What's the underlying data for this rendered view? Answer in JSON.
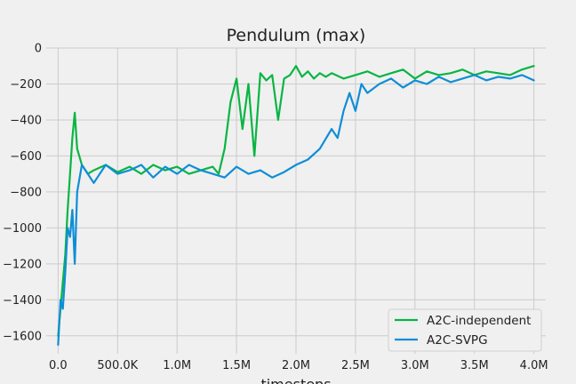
{
  "chart_data": {
    "type": "line",
    "title": "Pendulum (max)",
    "xlabel": "timesteps",
    "ylabel": "",
    "xlim": [
      -100000,
      4100000
    ],
    "ylim": [
      -1700,
      0
    ],
    "x_ticks": [
      0,
      500000,
      1000000,
      1500000,
      2000000,
      2500000,
      3000000,
      3500000,
      4000000
    ],
    "x_tick_labels": [
      "0.0",
      "500.0K",
      "1.0M",
      "1.5M",
      "2.0M",
      "2.5M",
      "3.0M",
      "3.5M",
      "4.0M"
    ],
    "y_ticks": [
      0,
      -200,
      -400,
      -600,
      -800,
      -1000,
      -1200,
      -1400,
      -1600
    ],
    "y_tick_labels": [
      "0",
      "−200",
      "−400",
      "−600",
      "−800",
      "−1000",
      "−1200",
      "−1400",
      "−1600"
    ],
    "grid": true,
    "legend_position": "bottom-right",
    "series": [
      {
        "name": "A2C-independent",
        "color": "#08b543",
        "x": [
          0,
          20000,
          40000,
          60000,
          80000,
          100000,
          120000,
          140000,
          160000,
          200000,
          250000,
          300000,
          400000,
          500000,
          600000,
          700000,
          800000,
          900000,
          1000000,
          1100000,
          1200000,
          1300000,
          1350000,
          1400000,
          1450000,
          1500000,
          1550000,
          1600000,
          1650000,
          1700000,
          1750000,
          1800000,
          1850000,
          1900000,
          1950000,
          2000000,
          2050000,
          2100000,
          2150000,
          2200000,
          2250000,
          2300000,
          2400000,
          2500000,
          2600000,
          2700000,
          2800000,
          2900000,
          3000000,
          3100000,
          3200000,
          3300000,
          3400000,
          3500000,
          3600000,
          3700000,
          3800000,
          3900000,
          4000000
        ],
        "y": [
          -1600,
          -1450,
          -1300,
          -1150,
          -900,
          -700,
          -500,
          -360,
          -560,
          -650,
          -700,
          -680,
          -650,
          -690,
          -660,
          -700,
          -650,
          -680,
          -660,
          -700,
          -680,
          -660,
          -700,
          -560,
          -300,
          -170,
          -450,
          -200,
          -600,
          -140,
          -180,
          -150,
          -400,
          -170,
          -150,
          -100,
          -160,
          -130,
          -170,
          -140,
          -160,
          -140,
          -170,
          -150,
          -130,
          -160,
          -140,
          -120,
          -170,
          -130,
          -150,
          -140,
          -120,
          -150,
          -130,
          -140,
          -150,
          -120,
          -100
        ]
      },
      {
        "name": "A2C-SVPG",
        "color": "#0e8ed6",
        "x": [
          0,
          20000,
          40000,
          60000,
          80000,
          100000,
          120000,
          140000,
          160000,
          200000,
          250000,
          300000,
          400000,
          500000,
          600000,
          700000,
          800000,
          900000,
          1000000,
          1100000,
          1200000,
          1300000,
          1400000,
          1500000,
          1600000,
          1700000,
          1800000,
          1900000,
          2000000,
          2100000,
          2200000,
          2300000,
          2350000,
          2400000,
          2450000,
          2500000,
          2550000,
          2600000,
          2700000,
          2800000,
          2900000,
          3000000,
          3100000,
          3200000,
          3300000,
          3400000,
          3500000,
          3600000,
          3700000,
          3800000,
          3900000,
          4000000
        ],
        "y": [
          -1650,
          -1400,
          -1450,
          -1250,
          -1000,
          -1050,
          -900,
          -1200,
          -800,
          -650,
          -700,
          -750,
          -650,
          -700,
          -680,
          -650,
          -720,
          -660,
          -700,
          -650,
          -680,
          -700,
          -720,
          -660,
          -700,
          -680,
          -720,
          -690,
          -650,
          -620,
          -560,
          -450,
          -500,
          -350,
          -250,
          -350,
          -200,
          -250,
          -200,
          -170,
          -220,
          -180,
          -200,
          -160,
          -190,
          -170,
          -150,
          -180,
          -160,
          -170,
          -150,
          -180
        ]
      }
    ]
  }
}
